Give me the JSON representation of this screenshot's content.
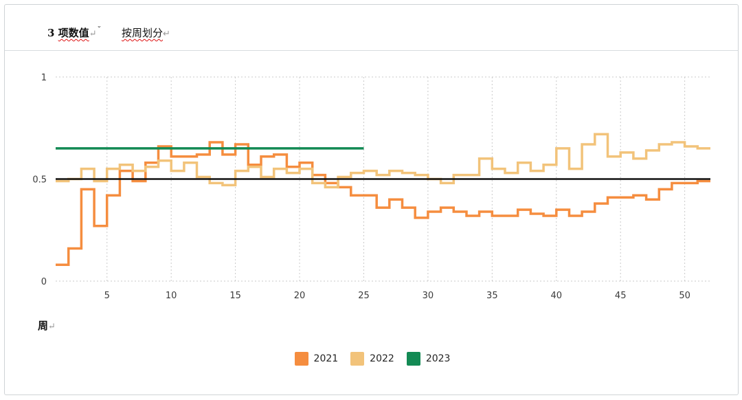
{
  "header": {
    "prefix": "3 ",
    "title": "项数值",
    "para_mark": "↵",
    "caret": "ˇ",
    "subtitle": "按周划分",
    "subtitle_mark": "↵"
  },
  "x_unit": "周",
  "x_unit_mark": "↵",
  "chart_data": {
    "type": "line",
    "step": true,
    "grid": true,
    "legend_position": "bottom-center",
    "xlim": [
      1,
      52
    ],
    "ylim": [
      0,
      1
    ],
    "x_ticks": [
      5,
      10,
      15,
      20,
      25,
      30,
      35,
      40,
      45,
      50
    ],
    "y_ticks": [
      0,
      0.5,
      1
    ],
    "y_tick_labels": [
      "0",
      "0.5",
      "1"
    ],
    "reference_line": {
      "y": 0.5,
      "color": "#111111"
    },
    "series": [
      {
        "name": "2021",
        "color": "#f58d3f",
        "values": [
          0.08,
          0.16,
          0.45,
          0.27,
          0.42,
          0.54,
          0.49,
          0.58,
          0.66,
          0.61,
          0.61,
          0.62,
          0.68,
          0.62,
          0.67,
          0.57,
          0.61,
          0.62,
          0.56,
          0.58,
          0.52,
          0.48,
          0.46,
          0.42,
          0.42,
          0.36,
          0.4,
          0.36,
          0.31,
          0.34,
          0.36,
          0.34,
          0.32,
          0.34,
          0.32,
          0.32,
          0.35,
          0.33,
          0.32,
          0.35,
          0.32,
          0.34,
          0.38,
          0.41,
          0.41,
          0.42,
          0.4,
          0.45,
          0.48,
          0.48,
          0.49
        ]
      },
      {
        "name": "2022",
        "color": "#f2c37a",
        "values": [
          0.49,
          0.5,
          0.55,
          0.49,
          0.55,
          0.57,
          0.54,
          0.56,
          0.59,
          0.54,
          0.58,
          0.51,
          0.48,
          0.47,
          0.54,
          0.56,
          0.51,
          0.55,
          0.53,
          0.55,
          0.48,
          0.46,
          0.51,
          0.53,
          0.54,
          0.52,
          0.54,
          0.53,
          0.52,
          0.5,
          0.48,
          0.52,
          0.52,
          0.6,
          0.55,
          0.53,
          0.58,
          0.54,
          0.57,
          0.65,
          0.55,
          0.67,
          0.72,
          0.61,
          0.63,
          0.6,
          0.64,
          0.67,
          0.68,
          0.66,
          0.65
        ]
      },
      {
        "name": "2023",
        "color": "#138a54",
        "values": [
          0.65,
          0.65,
          0.65,
          0.65,
          0.65,
          0.65,
          0.65,
          0.65,
          0.65,
          0.65,
          0.65,
          0.65,
          0.65,
          0.65,
          0.65,
          0.65,
          0.65,
          0.65,
          0.65,
          0.65,
          0.65,
          0.65,
          0.65,
          0.65
        ]
      }
    ]
  }
}
